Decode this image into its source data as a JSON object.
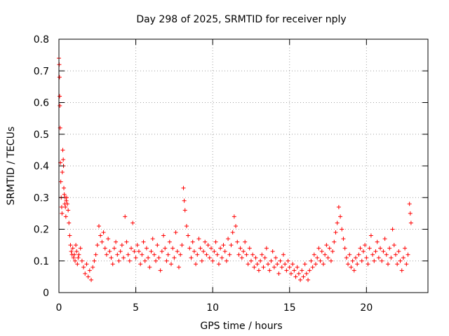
{
  "chart_data": {
    "type": "scatter",
    "title": "Day 298 of 2025, SRMTID for receiver nply",
    "xlabel": "GPS time / hours",
    "ylabel": "SRMTID / TECUs",
    "xlim": [
      0,
      24
    ],
    "ylim": [
      0,
      0.8
    ],
    "x_ticks": [
      0,
      5,
      10,
      15,
      20
    ],
    "x_tick_labels": [
      "0",
      "5",
      "10",
      "15",
      "20"
    ],
    "y_ticks": [
      0,
      0.1,
      0.2,
      0.3,
      0.4,
      0.5,
      0.6,
      0.7,
      0.8
    ],
    "y_tick_labels": [
      "0",
      "0.1",
      "0.2",
      "0.3",
      "0.4",
      "0.5",
      "0.6",
      "0.7",
      "0.8"
    ],
    "grid": true,
    "marker": "+",
    "marker_color": "#ff0000",
    "series": [
      {
        "name": "SRMTID",
        "points": [
          [
            0.0,
            0.74
          ],
          [
            0.02,
            0.72
          ],
          [
            0.04,
            0.68
          ],
          [
            0.05,
            0.62
          ],
          [
            0.06,
            0.59
          ],
          [
            0.08,
            0.52
          ],
          [
            0.1,
            0.41
          ],
          [
            0.12,
            0.35
          ],
          [
            0.15,
            0.3
          ],
          [
            0.18,
            0.27
          ],
          [
            0.2,
            0.25
          ],
          [
            0.22,
            0.38
          ],
          [
            0.25,
            0.45
          ],
          [
            0.28,
            0.42
          ],
          [
            0.3,
            0.4
          ],
          [
            0.32,
            0.33
          ],
          [
            0.35,
            0.31
          ],
          [
            0.38,
            0.28
          ],
          [
            0.4,
            0.3
          ],
          [
            0.42,
            0.27
          ],
          [
            0.45,
            0.24
          ],
          [
            0.48,
            0.29
          ],
          [
            0.5,
            0.3
          ],
          [
            0.55,
            0.28
          ],
          [
            0.6,
            0.26
          ],
          [
            0.65,
            0.22
          ],
          [
            0.7,
            0.18
          ],
          [
            0.75,
            0.15
          ],
          [
            0.8,
            0.13
          ],
          [
            0.85,
            0.12
          ],
          [
            0.9,
            0.14
          ],
          [
            0.95,
            0.11
          ],
          [
            1.0,
            0.12
          ],
          [
            1.05,
            0.1
          ],
          [
            1.1,
            0.15
          ],
          [
            1.15,
            0.13
          ],
          [
            1.2,
            0.09
          ],
          [
            1.25,
            0.11
          ],
          [
            1.3,
            0.12
          ],
          [
            1.4,
            0.14
          ],
          [
            1.5,
            0.1
          ],
          [
            1.6,
            0.08
          ],
          [
            1.7,
            0.06
          ],
          [
            1.8,
            0.09
          ],
          [
            1.9,
            0.05
          ],
          [
            2.0,
            0.07
          ],
          [
            2.1,
            0.04
          ],
          [
            2.2,
            0.08
          ],
          [
            2.3,
            0.1
          ],
          [
            2.4,
            0.12
          ],
          [
            2.5,
            0.15
          ],
          [
            2.6,
            0.21
          ],
          [
            2.7,
            0.18
          ],
          [
            2.8,
            0.16
          ],
          [
            2.9,
            0.19
          ],
          [
            3.0,
            0.14
          ],
          [
            3.1,
            0.12
          ],
          [
            3.2,
            0.17
          ],
          [
            3.3,
            0.13
          ],
          [
            3.4,
            0.11
          ],
          [
            3.5,
            0.09
          ],
          [
            3.6,
            0.14
          ],
          [
            3.7,
            0.16
          ],
          [
            3.8,
            0.12
          ],
          [
            3.9,
            0.1
          ],
          [
            4.0,
            0.13
          ],
          [
            4.1,
            0.15
          ],
          [
            4.2,
            0.11
          ],
          [
            4.3,
            0.24
          ],
          [
            4.4,
            0.16
          ],
          [
            4.5,
            0.12
          ],
          [
            4.6,
            0.1
          ],
          [
            4.7,
            0.14
          ],
          [
            4.8,
            0.22
          ],
          [
            4.9,
            0.13
          ],
          [
            5.0,
            0.11
          ],
          [
            5.1,
            0.15
          ],
          [
            5.2,
            0.13
          ],
          [
            5.3,
            0.09
          ],
          [
            5.4,
            0.12
          ],
          [
            5.5,
            0.16
          ],
          [
            5.6,
            0.1
          ],
          [
            5.7,
            0.14
          ],
          [
            5.8,
            0.11
          ],
          [
            5.9,
            0.08
          ],
          [
            6.0,
            0.13
          ],
          [
            6.1,
            0.17
          ],
          [
            6.2,
            0.12
          ],
          [
            6.3,
            0.1
          ],
          [
            6.4,
            0.15
          ],
          [
            6.5,
            0.11
          ],
          [
            6.6,
            0.07
          ],
          [
            6.7,
            0.13
          ],
          [
            6.8,
            0.18
          ],
          [
            6.9,
            0.14
          ],
          [
            7.0,
            0.1
          ],
          [
            7.1,
            0.12
          ],
          [
            7.2,
            0.16
          ],
          [
            7.3,
            0.09
          ],
          [
            7.4,
            0.14
          ],
          [
            7.5,
            0.11
          ],
          [
            7.6,
            0.19
          ],
          [
            7.7,
            0.13
          ],
          [
            7.8,
            0.08
          ],
          [
            7.9,
            0.12
          ],
          [
            8.0,
            0.15
          ],
          [
            8.1,
            0.33
          ],
          [
            8.15,
            0.29
          ],
          [
            8.2,
            0.26
          ],
          [
            8.3,
            0.21
          ],
          [
            8.4,
            0.18
          ],
          [
            8.5,
            0.14
          ],
          [
            8.6,
            0.11
          ],
          [
            8.7,
            0.16
          ],
          [
            8.8,
            0.13
          ],
          [
            8.9,
            0.09
          ],
          [
            9.0,
            0.12
          ],
          [
            9.1,
            0.17
          ],
          [
            9.2,
            0.14
          ],
          [
            9.3,
            0.1
          ],
          [
            9.4,
            0.13
          ],
          [
            9.5,
            0.16
          ],
          [
            9.6,
            0.12
          ],
          [
            9.7,
            0.15
          ],
          [
            9.8,
            0.11
          ],
          [
            9.9,
            0.14
          ],
          [
            10.0,
            0.1
          ],
          [
            10.1,
            0.13
          ],
          [
            10.2,
            0.16
          ],
          [
            10.3,
            0.12
          ],
          [
            10.4,
            0.09
          ],
          [
            10.5,
            0.14
          ],
          [
            10.6,
            0.11
          ],
          [
            10.7,
            0.15
          ],
          [
            10.8,
            0.13
          ],
          [
            10.9,
            0.1
          ],
          [
            11.0,
            0.17
          ],
          [
            11.1,
            0.12
          ],
          [
            11.2,
            0.15
          ],
          [
            11.3,
            0.19
          ],
          [
            11.4,
            0.24
          ],
          [
            11.5,
            0.21
          ],
          [
            11.6,
            0.16
          ],
          [
            11.7,
            0.12
          ],
          [
            11.8,
            0.14
          ],
          [
            11.9,
            0.11
          ],
          [
            12.0,
            0.13
          ],
          [
            12.1,
            0.16
          ],
          [
            12.2,
            0.12
          ],
          [
            12.3,
            0.09
          ],
          [
            12.4,
            0.14
          ],
          [
            12.5,
            0.1
          ],
          [
            12.6,
            0.12
          ],
          [
            12.7,
            0.08
          ],
          [
            12.8,
            0.11
          ],
          [
            12.9,
            0.09
          ],
          [
            13.0,
            0.07
          ],
          [
            13.1,
            0.1
          ],
          [
            13.2,
            0.12
          ],
          [
            13.3,
            0.08
          ],
          [
            13.4,
            0.11
          ],
          [
            13.5,
            0.14
          ],
          [
            13.6,
            0.09
          ],
          [
            13.7,
            0.07
          ],
          [
            13.8,
            0.1
          ],
          [
            13.9,
            0.13
          ],
          [
            14.0,
            0.08
          ],
          [
            14.1,
            0.11
          ],
          [
            14.2,
            0.09
          ],
          [
            14.3,
            0.06
          ],
          [
            14.4,
            0.1
          ],
          [
            14.5,
            0.08
          ],
          [
            14.6,
            0.12
          ],
          [
            14.7,
            0.09
          ],
          [
            14.8,
            0.07
          ],
          [
            14.9,
            0.1
          ],
          [
            15.0,
            0.08
          ],
          [
            15.1,
            0.06
          ],
          [
            15.2,
            0.09
          ],
          [
            15.3,
            0.07
          ],
          [
            15.4,
            0.05
          ],
          [
            15.5,
            0.08
          ],
          [
            15.6,
            0.06
          ],
          [
            15.7,
            0.04
          ],
          [
            15.8,
            0.07
          ],
          [
            15.9,
            0.05
          ],
          [
            16.0,
            0.09
          ],
          [
            16.1,
            0.06
          ],
          [
            16.2,
            0.04
          ],
          [
            16.3,
            0.07
          ],
          [
            16.4,
            0.1
          ],
          [
            16.5,
            0.08
          ],
          [
            16.6,
            0.12
          ],
          [
            16.7,
            0.09
          ],
          [
            16.8,
            0.11
          ],
          [
            16.9,
            0.14
          ],
          [
            17.0,
            0.1
          ],
          [
            17.1,
            0.13
          ],
          [
            17.2,
            0.09
          ],
          [
            17.3,
            0.12
          ],
          [
            17.4,
            0.15
          ],
          [
            17.5,
            0.11
          ],
          [
            17.6,
            0.14
          ],
          [
            17.7,
            0.1
          ],
          [
            17.8,
            0.13
          ],
          [
            17.9,
            0.16
          ],
          [
            18.0,
            0.19
          ],
          [
            18.1,
            0.22
          ],
          [
            18.2,
            0.27
          ],
          [
            18.3,
            0.24
          ],
          [
            18.4,
            0.2
          ],
          [
            18.5,
            0.17
          ],
          [
            18.6,
            0.14
          ],
          [
            18.7,
            0.11
          ],
          [
            18.8,
            0.09
          ],
          [
            18.9,
            0.12
          ],
          [
            19.0,
            0.08
          ],
          [
            19.1,
            0.1
          ],
          [
            19.2,
            0.07
          ],
          [
            19.3,
            0.11
          ],
          [
            19.4,
            0.09
          ],
          [
            19.5,
            0.12
          ],
          [
            19.6,
            0.14
          ],
          [
            19.7,
            0.1
          ],
          [
            19.8,
            0.13
          ],
          [
            19.9,
            0.15
          ],
          [
            20.0,
            0.11
          ],
          [
            20.1,
            0.09
          ],
          [
            20.2,
            0.14
          ],
          [
            20.3,
            0.18
          ],
          [
            20.4,
            0.12
          ],
          [
            20.5,
            0.1
          ],
          [
            20.6,
            0.13
          ],
          [
            20.7,
            0.16
          ],
          [
            20.8,
            0.11
          ],
          [
            20.9,
            0.14
          ],
          [
            21.0,
            0.1
          ],
          [
            21.1,
            0.13
          ],
          [
            21.2,
            0.17
          ],
          [
            21.3,
            0.12
          ],
          [
            21.4,
            0.09
          ],
          [
            21.5,
            0.14
          ],
          [
            21.6,
            0.11
          ],
          [
            21.7,
            0.2
          ],
          [
            21.8,
            0.15
          ],
          [
            21.9,
            0.12
          ],
          [
            22.0,
            0.09
          ],
          [
            22.1,
            0.13
          ],
          [
            22.2,
            0.1
          ],
          [
            22.3,
            0.07
          ],
          [
            22.4,
            0.11
          ],
          [
            22.5,
            0.14
          ],
          [
            22.6,
            0.09
          ],
          [
            22.7,
            0.12
          ],
          [
            22.8,
            0.28
          ],
          [
            22.85,
            0.25
          ],
          [
            22.9,
            0.22
          ]
        ]
      }
    ]
  }
}
